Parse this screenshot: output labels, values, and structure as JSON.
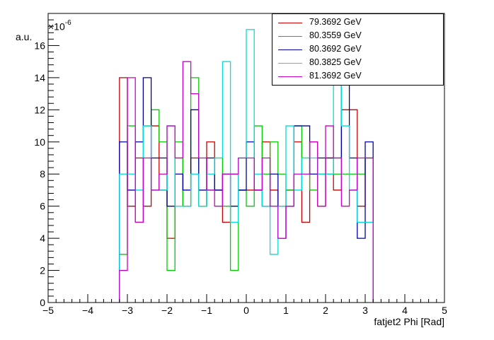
{
  "chart_data": {
    "type": "line",
    "style": "step-histogram",
    "xlabel": "fatjet2 Phi [Rad]",
    "ylabel": "a.u.",
    "y_exponent": "-6",
    "xlim": [
      -5,
      5
    ],
    "ylim": [
      0,
      18
    ],
    "x_ticks": [
      -5,
      -4,
      -3,
      -2,
      -1,
      0,
      1,
      2,
      3,
      4,
      5
    ],
    "y_ticks": [
      0,
      2,
      4,
      6,
      8,
      10,
      12,
      14,
      16
    ],
    "legend_position": "top-right",
    "bin_start": -3.2,
    "bin_width": 0.2,
    "series": [
      {
        "name": "79.3692 GeV",
        "color": "#cc0000",
        "values": [
          14,
          6,
          9,
          6,
          11,
          7,
          4,
          9,
          6,
          9,
          6,
          10,
          7,
          5,
          8,
          7,
          7,
          7,
          10,
          7,
          6,
          7,
          10,
          5,
          10,
          6,
          9,
          7,
          12,
          12,
          6,
          9
        ]
      },
      {
        "name": "80.3559 GeV",
        "color": "#00cc00",
        "values": [
          3,
          11,
          5,
          11,
          12,
          10,
          2,
          10,
          6,
          14,
          6,
          7,
          9,
          6,
          2,
          7,
          6,
          11,
          8,
          10,
          8,
          7,
          11,
          9,
          7,
          8,
          8,
          8,
          8,
          8,
          8,
          9
        ]
      },
      {
        "name": "80.3692 GeV",
        "color": "#0000aa",
        "values": [
          10,
          7,
          10,
          14,
          9,
          9,
          6,
          8,
          7,
          12,
          7,
          9,
          7,
          8,
          6,
          7,
          10,
          7,
          6,
          8,
          4,
          6,
          11,
          11,
          8,
          9,
          9,
          9,
          14,
          9,
          4,
          10
        ]
      },
      {
        "name": "80.3825 GeV",
        "color": "#00dddd",
        "values": [
          8,
          8,
          7,
          11,
          7,
          7,
          11,
          6,
          6,
          8,
          6,
          8,
          9,
          15,
          5,
          9,
          17,
          8,
          6,
          3,
          6,
          11,
          7,
          9,
          9,
          8,
          8,
          14,
          11,
          7,
          5,
          5
        ]
      },
      {
        "name": "81.3692 GeV",
        "color": "#cc00cc",
        "values": [
          2,
          14,
          5,
          9,
          7,
          8,
          11,
          9,
          15,
          13,
          9,
          7,
          6,
          8,
          8,
          9,
          9,
          7,
          9,
          6,
          4,
          6,
          8,
          8,
          10,
          6,
          11,
          9,
          6,
          7,
          9,
          9
        ]
      }
    ]
  }
}
